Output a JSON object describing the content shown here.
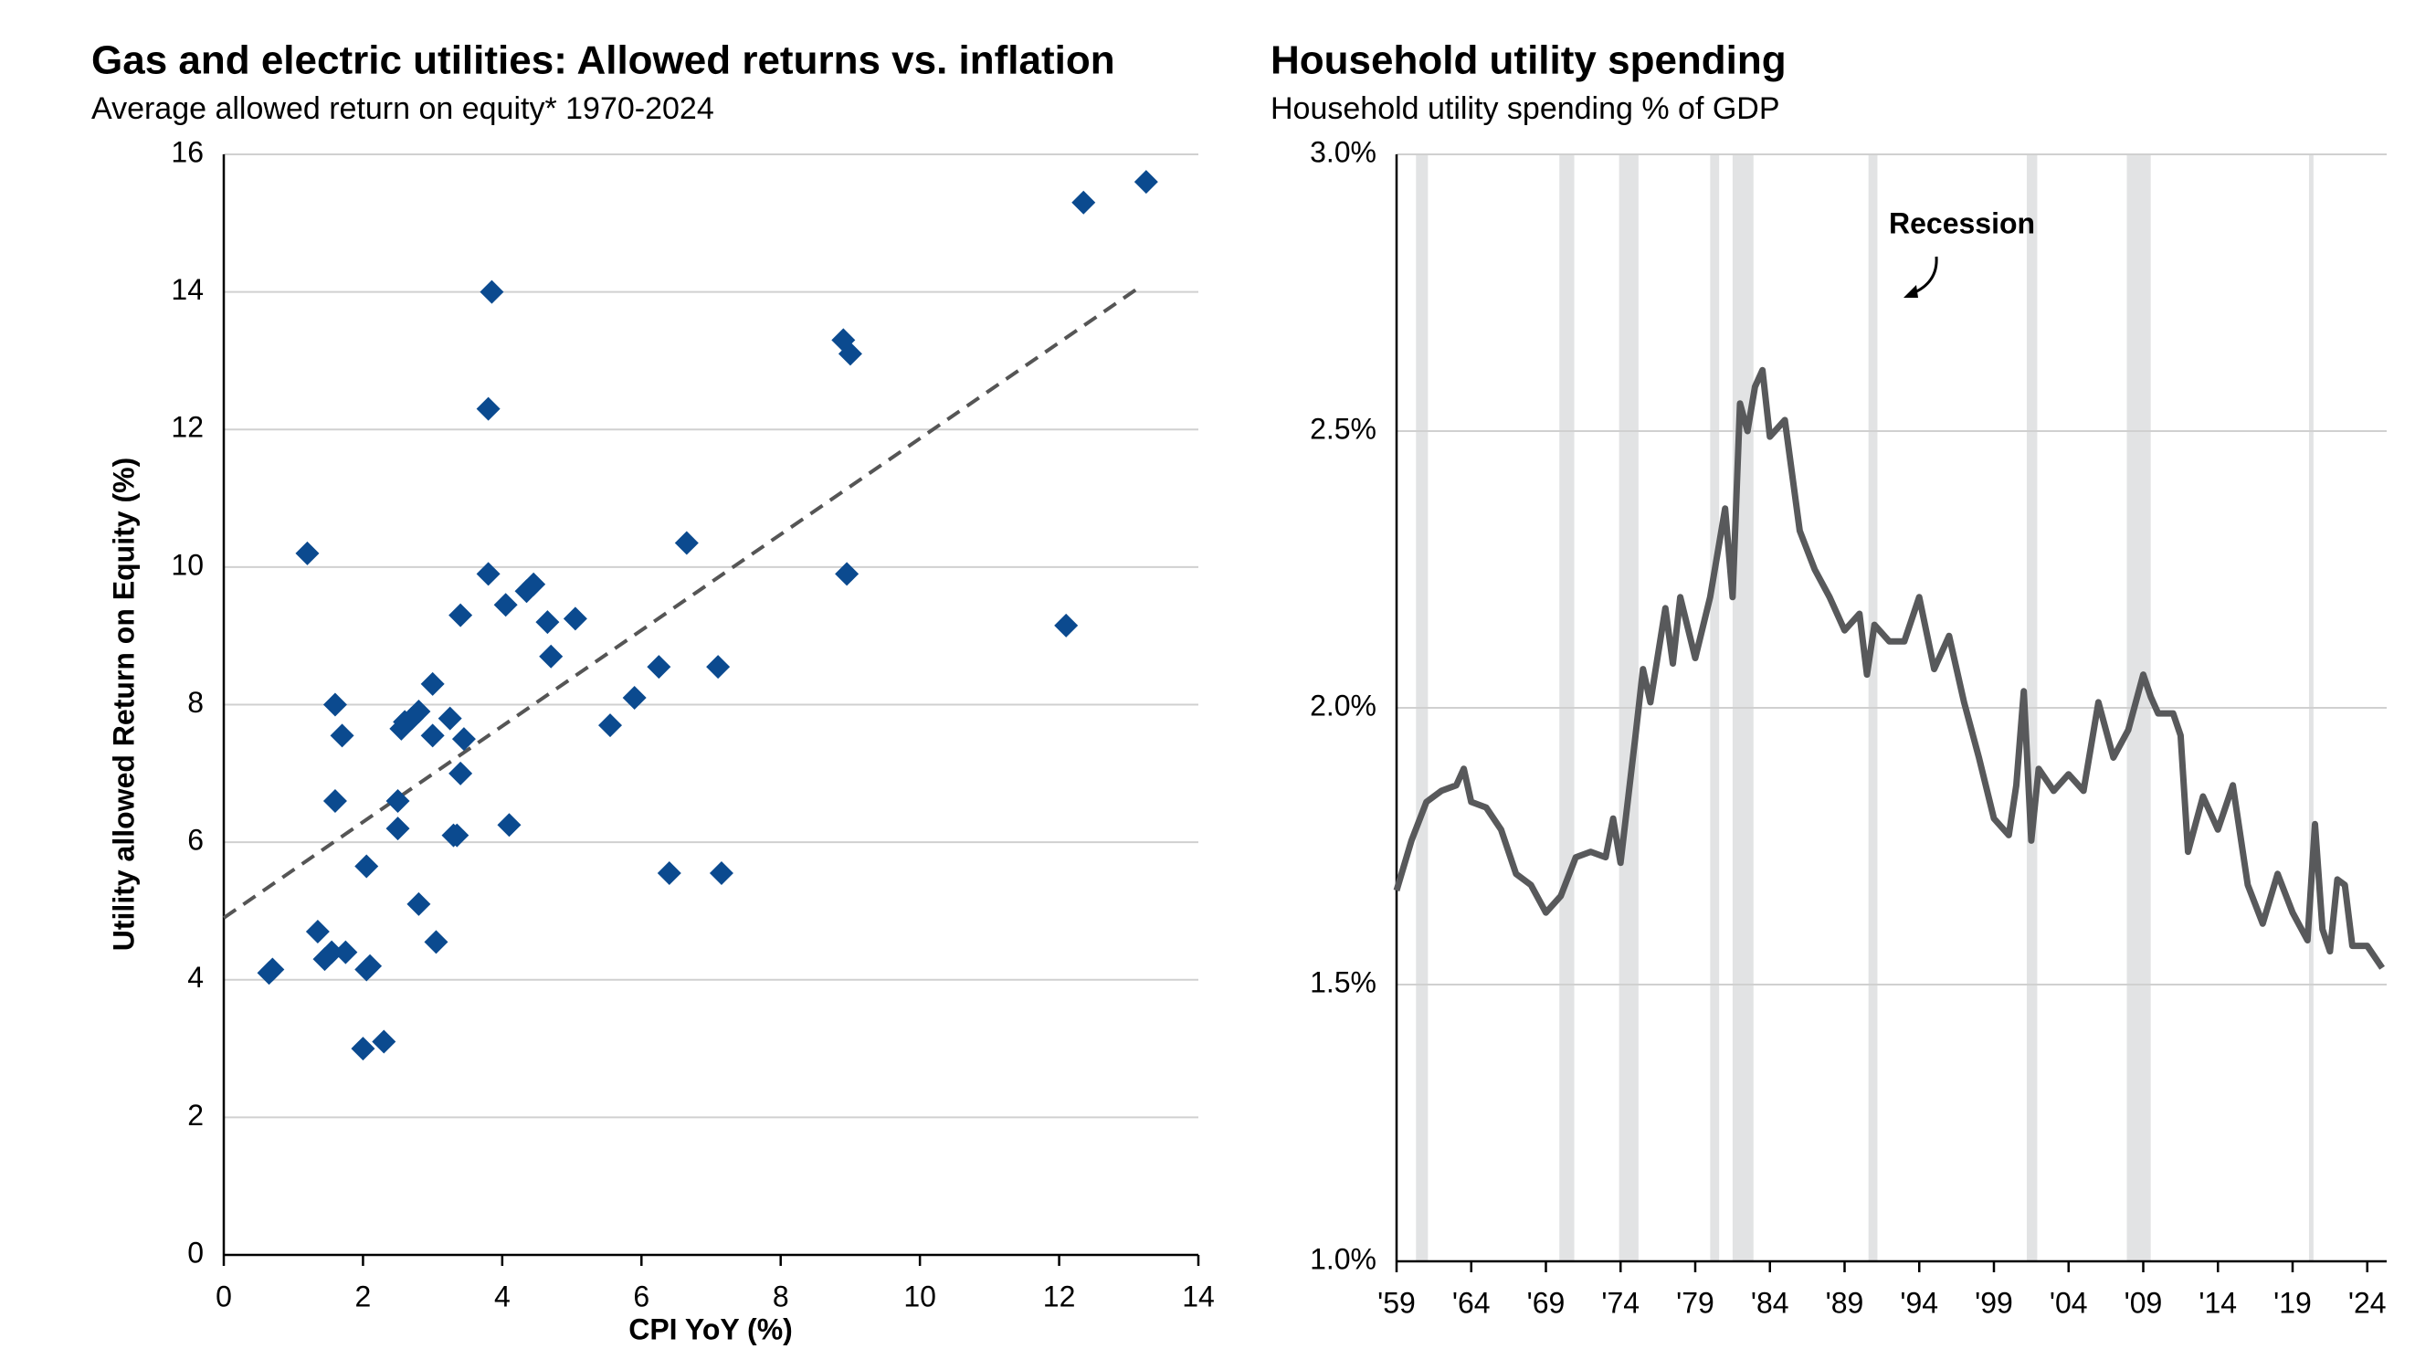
{
  "chart_data": [
    {
      "type": "scatter",
      "title": "Gas and electric utilities: Allowed returns vs. inflation",
      "subtitle": "Average allowed return on equity* 1970-2024",
      "x_label": "CPI YoY (%)",
      "y_label": "Utility allowed Return on Equity (%)",
      "color": "#0b4a8f",
      "x": [
        0.65,
        0.7,
        1.2,
        1.35,
        1.45,
        1.55,
        1.6,
        1.6,
        1.7,
        1.75,
        2.0,
        2.05,
        2.05,
        2.1,
        2.3,
        2.5,
        2.5,
        2.55,
        2.6,
        2.7,
        2.8,
        2.8,
        3.0,
        3.0,
        3.05,
        3.25,
        3.3,
        3.35,
        3.4,
        3.4,
        3.45,
        3.8,
        3.8,
        3.85,
        4.05,
        4.1,
        4.35,
        4.45,
        4.65,
        4.7,
        5.05,
        5.55,
        5.9,
        6.25,
        6.4,
        6.65,
        7.1,
        7.15,
        8.9,
        9.0,
        8.95,
        12.1,
        12.35,
        13.25
      ],
      "values": [
        4.1,
        4.15,
        10.2,
        4.7,
        4.3,
        4.4,
        6.6,
        8.0,
        7.55,
        4.4,
        3.0,
        5.65,
        4.15,
        4.2,
        3.1,
        6.2,
        6.6,
        7.65,
        7.75,
        7.8,
        7.9,
        5.1,
        8.3,
        7.55,
        4.55,
        7.8,
        6.1,
        6.1,
        7.0,
        9.3,
        7.5,
        12.3,
        9.9,
        14.0,
        9.45,
        6.25,
        9.65,
        9.75,
        9.2,
        8.7,
        9.25,
        7.7,
        8.1,
        8.55,
        5.55,
        10.35,
        8.55,
        5.55,
        13.3,
        13.1,
        9.9,
        9.15,
        15.3,
        15.6
      ],
      "trendline": {
        "x": [
          0,
          13.2
        ],
        "values": [
          4.9,
          14.1
        ],
        "color": "#555555"
      },
      "xlim": [
        0,
        14
      ],
      "xticks": [
        0,
        2,
        4,
        6,
        8,
        10,
        12,
        14
      ],
      "ylim": [
        0,
        16
      ],
      "yticks": [
        0,
        2,
        4,
        6,
        8,
        10,
        12,
        14,
        16
      ],
      "grid": true
    },
    {
      "type": "line",
      "title": "Household utility spending",
      "subtitle": "Household utility spending % of GDP",
      "annotation": "Recession",
      "color": "#58595b",
      "band_color": "#e2e3e4",
      "recessions": [
        [
          1960.3,
          1961.1
        ],
        [
          1969.9,
          1970.9
        ],
        [
          1973.9,
          1975.2
        ],
        [
          1980.0,
          1980.6
        ],
        [
          1981.5,
          1982.9
        ],
        [
          1990.6,
          1991.2
        ],
        [
          2001.2,
          2001.9
        ],
        [
          2007.9,
          2009.5
        ],
        [
          2020.1,
          2020.4
        ]
      ],
      "x": [
        1959,
        1960,
        1961,
        1962,
        1963,
        1963.5,
        1964,
        1965,
        1966,
        1967,
        1968,
        1969,
        1970,
        1971,
        1972,
        1973,
        1973.5,
        1974,
        1975,
        1975.5,
        1976,
        1977,
        1977.5,
        1978,
        1979,
        1980,
        1981,
        1981.5,
        1982,
        1982.5,
        1983,
        1983.5,
        1984,
        1985,
        1986,
        1987,
        1988,
        1989,
        1990,
        1990.5,
        1991,
        1992,
        1993,
        1994,
        1995,
        1996,
        1997,
        1998,
        1999,
        2000,
        2000.5,
        2001,
        2001.5,
        2002,
        2003,
        2004,
        2005,
        2006,
        2007,
        2008,
        2009,
        2009.5,
        2010,
        2011,
        2011.5,
        2012,
        2013,
        2014,
        2015,
        2016,
        2017,
        2018,
        2019,
        2020,
        2020.5,
        2021,
        2021.5,
        2022,
        2022.5,
        2023,
        2024,
        2025
      ],
      "values": [
        1.67,
        1.76,
        1.83,
        1.85,
        1.86,
        1.89,
        1.83,
        1.82,
        1.78,
        1.7,
        1.68,
        1.63,
        1.66,
        1.73,
        1.74,
        1.73,
        1.8,
        1.72,
        1.95,
        2.07,
        2.01,
        2.18,
        2.08,
        2.2,
        2.09,
        2.2,
        2.36,
        2.2,
        2.55,
        2.5,
        2.58,
        2.61,
        2.49,
        2.52,
        2.32,
        2.25,
        2.2,
        2.14,
        2.17,
        2.06,
        2.15,
        2.12,
        2.12,
        2.2,
        2.07,
        2.13,
        2.01,
        1.91,
        1.8,
        1.77,
        1.86,
        2.03,
        1.76,
        1.89,
        1.85,
        1.88,
        1.85,
        2.01,
        1.91,
        1.96,
        2.06,
        2.02,
        1.99,
        1.99,
        1.95,
        1.74,
        1.84,
        1.78,
        1.86,
        1.68,
        1.61,
        1.7,
        1.63,
        1.58,
        1.79,
        1.6,
        1.56,
        1.69,
        1.68,
        1.57,
        1.57,
        1.53
      ],
      "xlim": [
        1959,
        2025.3
      ],
      "xticks": [
        {
          "value": 1959,
          "label": "'59"
        },
        {
          "value": 1964,
          "label": "'64"
        },
        {
          "value": 1969,
          "label": "'69"
        },
        {
          "value": 1974,
          "label": "'74"
        },
        {
          "value": 1979,
          "label": "'79"
        },
        {
          "value": 1984,
          "label": "'84"
        },
        {
          "value": 1989,
          "label": "'89"
        },
        {
          "value": 1994,
          "label": "'94"
        },
        {
          "value": 1999,
          "label": "'99"
        },
        {
          "value": 2004,
          "label": "'04"
        },
        {
          "value": 2009,
          "label": "'09"
        },
        {
          "value": 2014,
          "label": "'14"
        },
        {
          "value": 2019,
          "label": "'19"
        },
        {
          "value": 2024,
          "label": "'24"
        }
      ],
      "ylim": [
        1.0,
        3.0
      ],
      "yticks": [
        {
          "value": 1.0,
          "label": "1.0%"
        },
        {
          "value": 1.5,
          "label": "1.5%"
        },
        {
          "value": 2.0,
          "label": "2.0%"
        },
        {
          "value": 2.5,
          "label": "2.5%"
        },
        {
          "value": 3.0,
          "label": "3.0%"
        }
      ],
      "grid": true
    }
  ]
}
